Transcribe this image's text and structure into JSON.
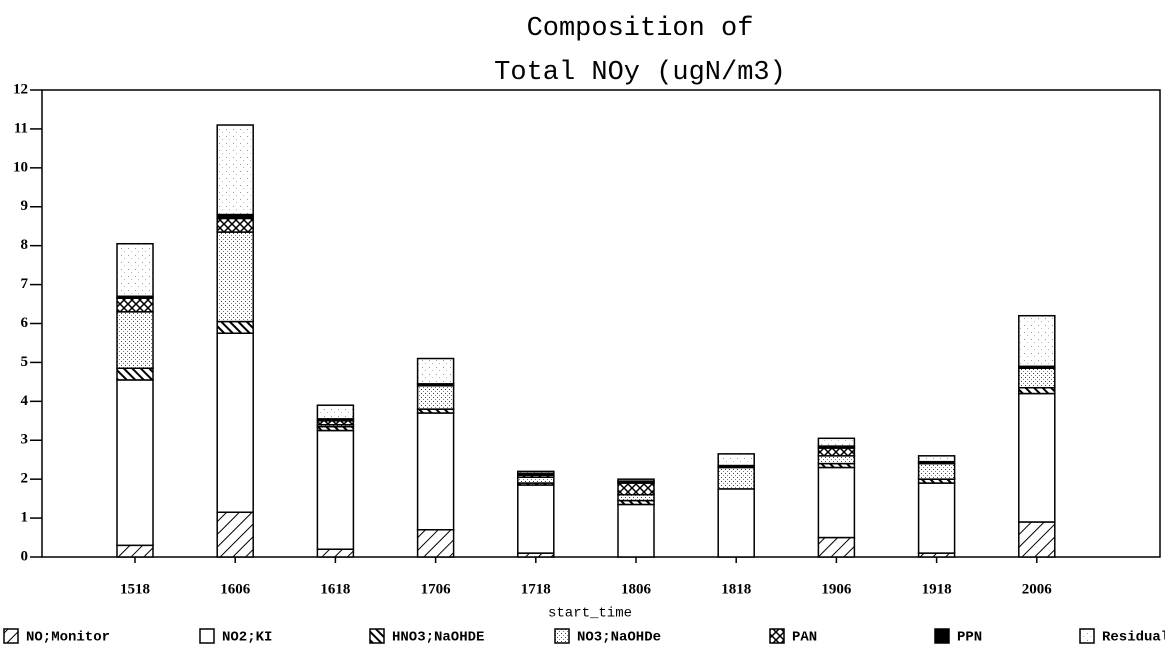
{
  "chart_data": {
    "type": "stacked-bar",
    "title": [
      "Composition of",
      "Total NOy (ugN/m3)"
    ],
    "x_label": "start_time",
    "categories": [
      "1518",
      "1606",
      "1618",
      "1706",
      "1718",
      "1806",
      "1818",
      "1906",
      "1918",
      "2006"
    ],
    "series": [
      {
        "name": "NO;Monitor",
        "color": "#000000",
        "hatch": "diagonal",
        "values": [
          0.3,
          1.15,
          0.2,
          0.7,
          0.1,
          0,
          0,
          0.5,
          0.1,
          0.9
        ]
      },
      {
        "name": "NO2;KI",
        "color": "#000000",
        "hatch": "none",
        "values": [
          4.25,
          4.6,
          3.05,
          3.0,
          1.75,
          1.35,
          1.75,
          1.8,
          1.8,
          3.3
        ]
      },
      {
        "name": "HNO3;NaOHDE",
        "color": "#000000",
        "hatch": "dense",
        "values": [
          0.3,
          0.3,
          0.1,
          0.1,
          0.05,
          0.1,
          0,
          0.1,
          0.1,
          0.15
        ]
      },
      {
        "name": "NO3;NaOHDe",
        "color": "#000000",
        "hatch": "dots",
        "values": [
          1.45,
          2.3,
          0.05,
          0.6,
          0.15,
          0.15,
          0.55,
          0.2,
          0.4,
          0.5
        ]
      },
      {
        "name": "PAN",
        "color": "#000000",
        "hatch": "cross",
        "values": [
          0.35,
          0.35,
          0.1,
          0,
          0.05,
          0.3,
          0,
          0.2,
          0,
          0
        ]
      },
      {
        "name": "PPN",
        "color": "#000000",
        "hatch": "solid",
        "values": [
          0.05,
          0.1,
          0.05,
          0.05,
          0.05,
          0.05,
          0.05,
          0.05,
          0.05,
          0.05
        ]
      },
      {
        "name": "Residual",
        "color": "#000000",
        "hatch": "light",
        "values": [
          1.35,
          2.3,
          0.35,
          0.65,
          0.05,
          0.05,
          0.3,
          0.2,
          0.15,
          1.3
        ]
      }
    ],
    "ylim": [
      0,
      12
    ],
    "yticks": [
      0,
      1,
      2,
      3,
      4,
      5,
      6,
      7,
      8,
      9,
      10,
      11,
      12
    ],
    "legend": "bottom"
  }
}
